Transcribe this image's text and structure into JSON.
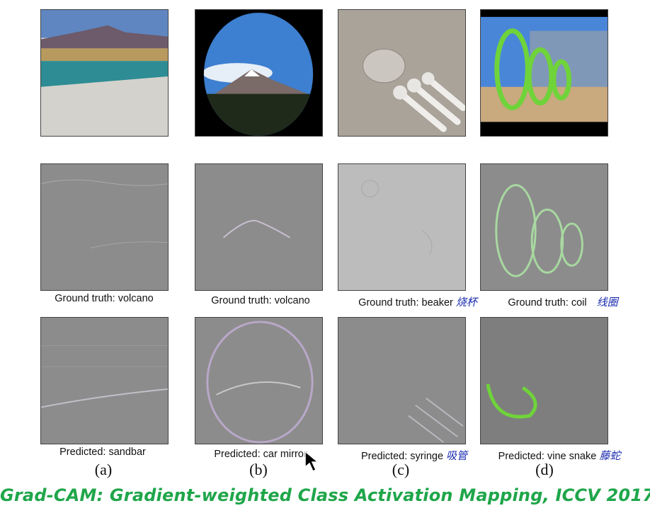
{
  "columns": [
    {
      "ground_truth": "Ground truth: volcano",
      "predicted": "Predicted: sandbar",
      "letter": "(a)"
    },
    {
      "ground_truth": "Ground truth: volcano",
      "predicted": "Predicted: car mirror",
      "letter": "(b)"
    },
    {
      "ground_truth": "Ground truth: beaker",
      "ground_truth_note": "烧杯",
      "predicted": "Predicted: syringe",
      "predicted_note": "吸管",
      "letter": "(c)"
    },
    {
      "ground_truth": "Ground truth: coil",
      "ground_truth_note": "线圈",
      "predicted": "Predicted: vine snake",
      "predicted_note": "藤蛇",
      "letter": "(d)"
    }
  ],
  "caption": "Grad-CAM: Gradient-weighted Class Activation Mapping, ICCV 2017"
}
